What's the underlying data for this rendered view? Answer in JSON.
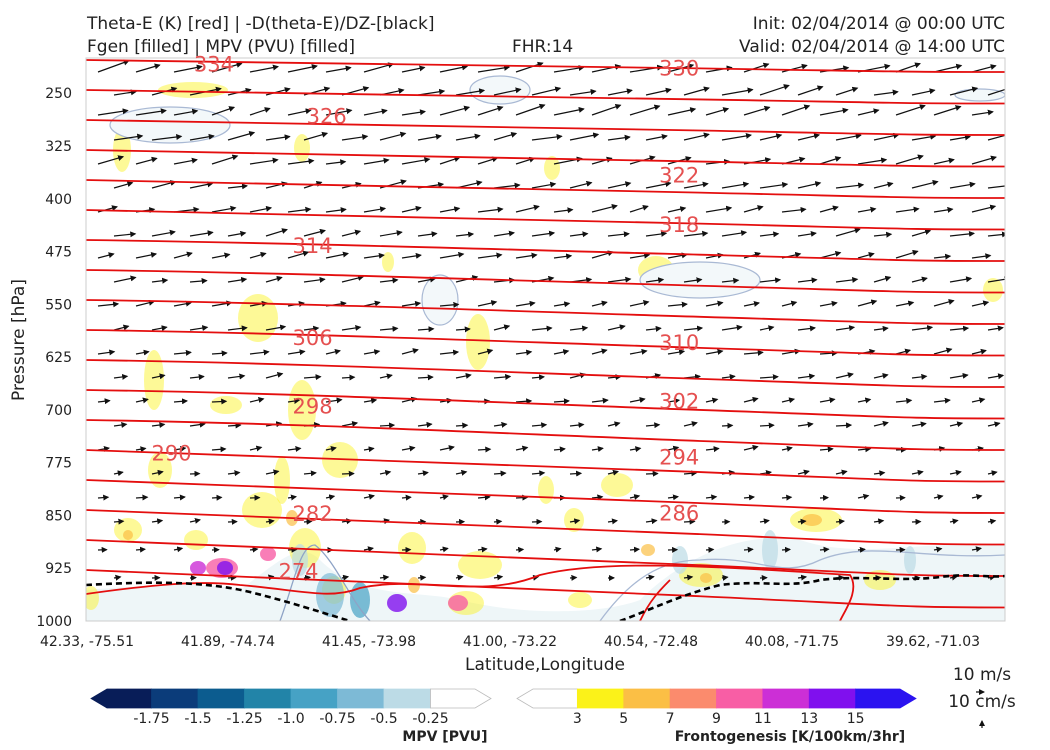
{
  "header": {
    "title_line1": "Theta-E (K) [red] | -D(theta-E)/DZ-[black]",
    "title_line2": "Fgen [filled] | MPV (PVU) [filled]",
    "fhr": "FHR:14",
    "init": "Init: 02/04/2014 @ 00:00 UTC",
    "valid": "Valid: 02/04/2014 @ 14:00 UTC"
  },
  "chart_data": {
    "type": "cross-section",
    "xlabel": "Latitude,Longitude",
    "ylabel": "Pressure [hPa]",
    "x_ticks": [
      "42.33, -75.51",
      "41.89, -74.74",
      "41.45, -73.98",
      "41.00, -73.22",
      "40.54, -72.48",
      "40.08, -71.75",
      "39.62, -71.03"
    ],
    "y_ticks": [
      250,
      325,
      400,
      475,
      550,
      625,
      700,
      775,
      850,
      925,
      1000
    ],
    "ylim": [
      1000,
      200
    ],
    "theta_e_labels": [
      {
        "value": "334",
        "x_index": 0.9,
        "p": 209
      },
      {
        "value": "330",
        "x_index": 4.2,
        "p": 215
      },
      {
        "value": "326",
        "x_index": 1.7,
        "p": 283
      },
      {
        "value": "322",
        "x_index": 4.2,
        "p": 367
      },
      {
        "value": "318",
        "x_index": 4.2,
        "p": 437
      },
      {
        "value": "314",
        "x_index": 1.6,
        "p": 467
      },
      {
        "value": "310",
        "x_index": 4.2,
        "p": 605
      },
      {
        "value": "306",
        "x_index": 1.6,
        "p": 598
      },
      {
        "value": "302",
        "x_index": 4.2,
        "p": 688
      },
      {
        "value": "298",
        "x_index": 1.6,
        "p": 695
      },
      {
        "value": "294",
        "x_index": 4.2,
        "p": 768
      },
      {
        "value": "290",
        "x_index": 0.6,
        "p": 762
      },
      {
        "value": "286",
        "x_index": 4.2,
        "p": 847
      },
      {
        "value": "282",
        "x_index": 1.6,
        "p": 848
      },
      {
        "value": "274",
        "x_index": 1.5,
        "p": 930
      }
    ],
    "wind_reference": {
      "horizontal": "10 m/s",
      "vertical": "10 cm/s"
    }
  },
  "colorbars": {
    "mpv": {
      "title": "MPV [PVU]",
      "labels": [
        "-1.75",
        "-1.5",
        "-1.25",
        "-1.0",
        "-0.75",
        "-0.5",
        "-0.25"
      ],
      "colors": [
        "#081d58",
        "#0b3c7a",
        "#0c5c8f",
        "#2284a8",
        "#46a2c5",
        "#7dbad6",
        "#bcdbe6",
        "#ffffff"
      ]
    },
    "fgen": {
      "title": "Frontogenesis [K/100km/3hr]",
      "labels": [
        "3",
        "5",
        "7",
        "9",
        "11",
        "13",
        "15"
      ],
      "colors": [
        "#ffffff",
        "#fbf219",
        "#fbbf45",
        "#fb8b6d",
        "#f85ea5",
        "#cc2fd6",
        "#8010ee",
        "#2b13f0"
      ]
    }
  }
}
